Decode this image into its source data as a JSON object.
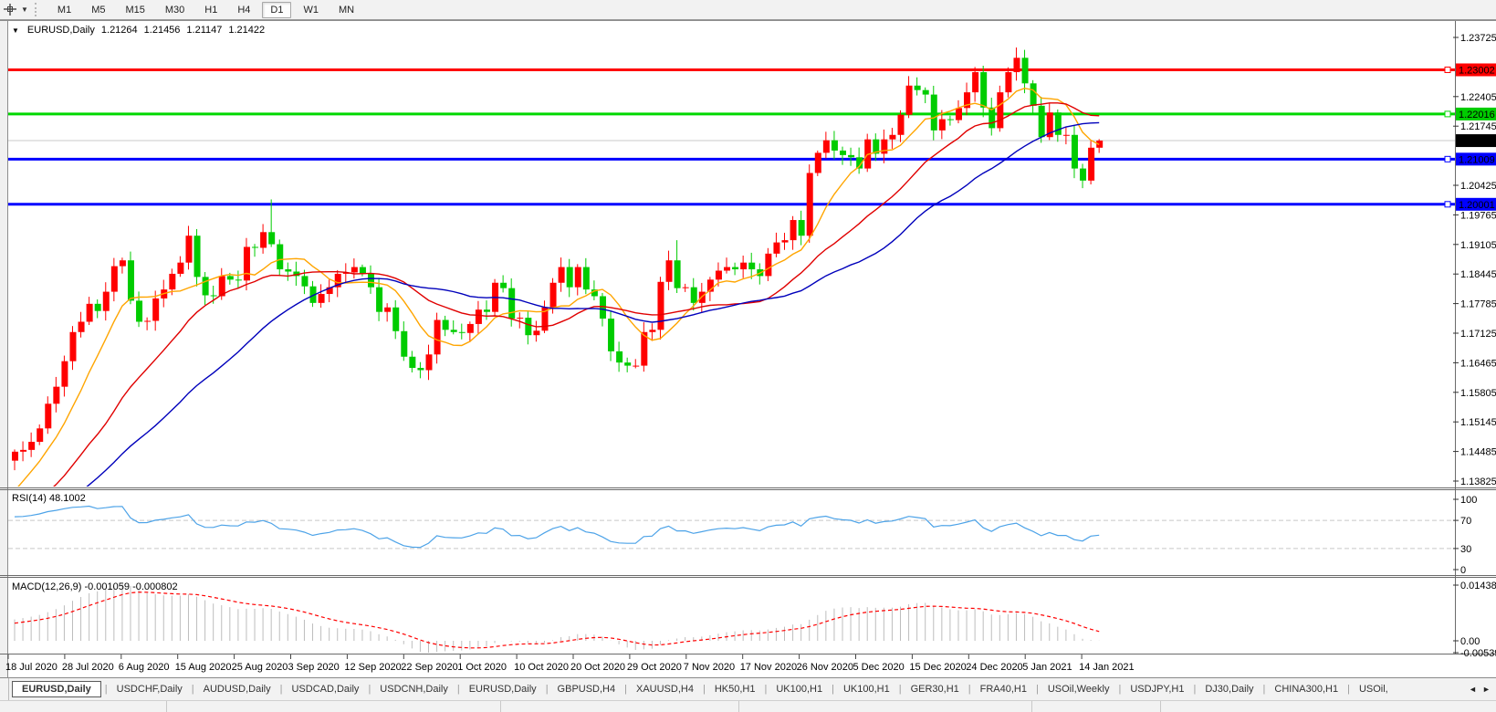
{
  "toolbar": {
    "timeframes": [
      {
        "label": "M1",
        "active": false
      },
      {
        "label": "M5",
        "active": false
      },
      {
        "label": "M15",
        "active": false
      },
      {
        "label": "M30",
        "active": false
      },
      {
        "label": "H1",
        "active": false
      },
      {
        "label": "H4",
        "active": false
      },
      {
        "label": "D1",
        "active": true
      },
      {
        "label": "W1",
        "active": false
      },
      {
        "label": "MN",
        "active": false
      }
    ],
    "caret": "▼"
  },
  "chart_header": {
    "collapse_icon": "▼",
    "symbol": "EURUSD,Daily",
    "open": "1.21264",
    "high": "1.21456",
    "low": "1.21147",
    "close": "1.21422"
  },
  "colors": {
    "bull": "#ff0000",
    "bear": "#00cc00",
    "ma_fast": "#ffa500",
    "ma_mid": "#e00000",
    "ma_slow": "#0000bb",
    "current": "#c8c8c8",
    "grid_text": "#000000",
    "rsi": "#4da3e8",
    "rsi_levels": "#c6c6c6",
    "macd_hist": "#bdbdbd",
    "macd_signal": "#ff0000"
  },
  "price_axis": {
    "ticks": [
      "1.23725",
      "1.22405",
      "1.21745",
      "1.20425",
      "1.19765",
      "1.19105",
      "1.18445",
      "1.17785",
      "1.17125",
      "1.16465",
      "1.15805",
      "1.15145",
      "1.14485",
      "1.13825"
    ]
  },
  "levels": [
    {
      "label": "1.23002",
      "price": 1.23002,
      "color": "#ff0000"
    },
    {
      "label": "1.22016",
      "price": 1.22016,
      "color": "#00d800"
    },
    {
      "label": "1.21009",
      "price": 1.21009,
      "color": "#0000ff"
    },
    {
      "label": "1.20001",
      "price": 1.20001,
      "color": "#0000ff"
    }
  ],
  "current_price": {
    "label": "1.21422",
    "price": 1.21422
  },
  "chart_data": {
    "type": "candlestick",
    "title": "EURUSD,Daily",
    "ohlc_display": "1.21264 1.21456 1.21147 1.21422",
    "first_open": 1.1428,
    "pre_closes": [
      1.08,
      1.082,
      1.084,
      1.083,
      1.085,
      1.087,
      1.09,
      1.0895,
      1.091,
      1.093,
      1.095,
      1.097,
      1.098,
      1.0965,
      1.0985,
      1.101,
      1.106,
      1.113,
      1.118,
      1.125,
      1.129,
      1.133,
      1.134,
      1.1295,
      1.128,
      1.13,
      1.133,
      1.132,
      1.134,
      1.136,
      1.125,
      1.123,
      1.124,
      1.126,
      1.122,
      1.12,
      1.1215,
      1.1245,
      1.1255,
      1.123,
      1.1245,
      1.126,
      1.125,
      1.127,
      1.13,
      1.133,
      1.1325,
      1.1305,
      1.128,
      1.1296,
      1.132,
      1.134,
      1.138,
      1.14,
      1.142
    ],
    "closes": [
      1.1448,
      1.1452,
      1.147,
      1.15,
      1.1555,
      1.1593,
      1.165,
      1.1715,
      1.1738,
      1.1778,
      1.1762,
      1.1805,
      1.1862,
      1.1875,
      1.1785,
      1.1738,
      1.174,
      1.179,
      1.181,
      1.1845,
      1.187,
      1.193,
      1.1838,
      1.1797,
      1.1795,
      1.184,
      1.1832,
      1.183,
      1.1905,
      1.1903,
      1.1938,
      1.1911,
      1.1855,
      1.185,
      1.184,
      1.1817,
      1.178,
      1.18,
      1.1815,
      1.1845,
      1.1848,
      1.186,
      1.1845,
      1.1815,
      1.176,
      1.177,
      1.1717,
      1.166,
      1.1635,
      1.163,
      1.1665,
      1.1742,
      1.172,
      1.1715,
      1.1713,
      1.1733,
      1.1765,
      1.176,
      1.1825,
      1.1813,
      1.1745,
      1.1747,
      1.1708,
      1.1718,
      1.177,
      1.1825,
      1.186,
      1.1815,
      1.186,
      1.181,
      1.1795,
      1.1745,
      1.1672,
      1.1647,
      1.164,
      1.164,
      1.1715,
      1.172,
      1.1827,
      1.1875,
      1.1813,
      1.1815,
      1.178,
      1.1805,
      1.1832,
      1.1852,
      1.186,
      1.1855,
      1.187,
      1.1855,
      1.184,
      1.189,
      1.1915,
      1.192,
      1.1965,
      1.193,
      1.207,
      1.2115,
      1.2143,
      1.212,
      1.211,
      1.2105,
      1.208,
      1.2145,
      1.2113,
      1.2145,
      1.2155,
      1.22,
      1.2265,
      1.2255,
      1.2245,
      1.2165,
      1.219,
      1.2188,
      1.2215,
      1.225,
      1.2295,
      1.2216,
      1.217,
      1.225,
      1.2295,
      1.2327,
      1.227,
      1.222,
      1.215,
      1.2205,
      1.2155,
      1.2155,
      1.208,
      1.2053,
      1.21264,
      1.21422
    ],
    "wick_overrides": {
      "31": {
        "h": 1.2011
      },
      "80": {
        "h": 1.192
      },
      "121": {
        "h": 1.235
      },
      "131": {
        "h": 1.21456,
        "l": 1.21147
      }
    },
    "moving_averages": [
      {
        "name": "ma-fast",
        "period": 8,
        "color": "#ffa500"
      },
      {
        "name": "ma-mid",
        "period": 20,
        "color": "#e00000"
      },
      {
        "name": "ma-slow",
        "period": 34,
        "color": "#0000bb"
      }
    ],
    "x_axis": {
      "dates": [
        "18 Jul 2020",
        "28 Jul 2020",
        "6 Aug 2020",
        "15 Aug 2020",
        "25 Aug 2020",
        "3 Sep 2020",
        "12 Sep 2020",
        "22 Sep 2020",
        "1 Oct 2020",
        "10 Oct 2020",
        "20 Oct 2020",
        "29 Oct 2020",
        "7 Nov 2020",
        "17 Nov 2020",
        "26 Nov 2020",
        "5 Dec 2020",
        "15 Dec 2020",
        "24 Dec 2020",
        "5 Jan 2021",
        "14 Jan 2021"
      ]
    },
    "indicators": {
      "rsi": {
        "label": "RSI(14) 48.1002",
        "period": 14,
        "levels": [
          70,
          30
        ],
        "scale": [
          "100",
          "70",
          "30",
          "0"
        ],
        "color": "#4da3e8"
      },
      "macd": {
        "label": "MACD(12,26,9) -0.001059 -0.000802",
        "fast": 12,
        "slow": 26,
        "signal": 9,
        "scale": [
          "0.014384",
          "0.00",
          "-0.005398"
        ]
      }
    }
  },
  "tabs": {
    "items": [
      {
        "label": "EURUSD,Daily",
        "active": true
      },
      {
        "label": "USDCHF,Daily",
        "active": false
      },
      {
        "label": "AUDUSD,Daily",
        "active": false
      },
      {
        "label": "USDCAD,Daily",
        "active": false
      },
      {
        "label": "USDCNH,Daily",
        "active": false
      },
      {
        "label": "EURUSD,Daily",
        "active": false
      },
      {
        "label": "GBPUSD,H4",
        "active": false
      },
      {
        "label": "XAUUSD,H4",
        "active": false
      },
      {
        "label": "HK50,H1",
        "active": false
      },
      {
        "label": "UK100,H1",
        "active": false
      },
      {
        "label": "UK100,H1",
        "active": false
      },
      {
        "label": "GER30,H1",
        "active": false
      },
      {
        "label": "FRA40,H1",
        "active": false
      },
      {
        "label": "USOil,Weekly",
        "active": false
      },
      {
        "label": "USDJPY,H1",
        "active": false
      },
      {
        "label": "DJ30,Daily",
        "active": false
      },
      {
        "label": "CHINA300,H1",
        "active": false
      },
      {
        "label": "USOil,",
        "active": false
      }
    ],
    "scroll_left": "◄",
    "scroll_right": "►"
  }
}
